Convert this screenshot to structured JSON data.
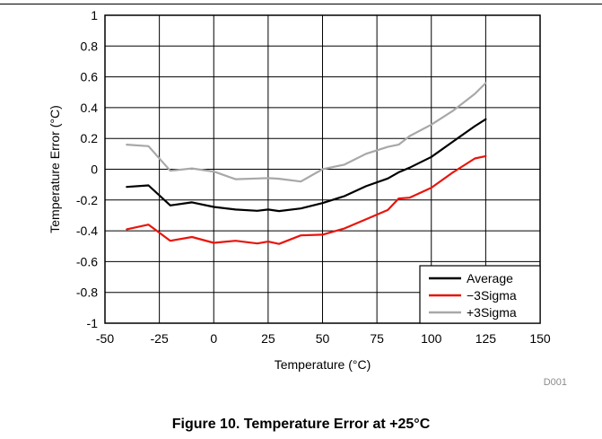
{
  "caption": "Figure 10. Temperature Error at +25°C",
  "figure_code": "D001",
  "chart_data": {
    "type": "line",
    "title": "",
    "xlabel": "Temperature (°C)",
    "ylabel": "Temperature Error (°C)",
    "xlim": [
      -50,
      150
    ],
    "ylim": [
      -1,
      1
    ],
    "x_ticks": [
      -50,
      -25,
      0,
      25,
      50,
      75,
      100,
      125,
      150
    ],
    "x_tick_labels": [
      "-50",
      "-25",
      "0",
      "25",
      "50",
      "75",
      "100",
      "125",
      "150"
    ],
    "y_ticks": [
      -1,
      -0.8,
      -0.6,
      -0.4,
      -0.2,
      0,
      0.2,
      0.4,
      0.6,
      0.8,
      1
    ],
    "y_tick_labels": [
      "-1",
      "-0.8",
      "-0.6",
      "-0.4",
      "-0.2",
      "0",
      "0.2",
      "0.4",
      "0.6",
      "0.8",
      "1"
    ],
    "grid": true,
    "legend_position": "bottom-right",
    "series": [
      {
        "name": "Average",
        "color": "#000000",
        "x": [
          -40,
          -30,
          -20,
          -10,
          0,
          10,
          20,
          25,
          30,
          40,
          50,
          60,
          70,
          80,
          85,
          90,
          100,
          110,
          120,
          125
        ],
        "y": [
          -0.115,
          -0.105,
          -0.235,
          -0.215,
          -0.245,
          -0.262,
          -0.27,
          -0.262,
          -0.272,
          -0.255,
          -0.22,
          -0.175,
          -0.11,
          -0.06,
          -0.02,
          0.01,
          0.08,
          0.18,
          0.28,
          0.325
        ]
      },
      {
        "name": "−3Sigma",
        "color": "#e8150c",
        "x": [
          -40,
          -30,
          -20,
          -10,
          0,
          10,
          20,
          25,
          30,
          40,
          50,
          60,
          70,
          80,
          85,
          90,
          100,
          110,
          120,
          125
        ],
        "y": [
          -0.39,
          -0.36,
          -0.465,
          -0.44,
          -0.478,
          -0.465,
          -0.482,
          -0.47,
          -0.485,
          -0.43,
          -0.425,
          -0.385,
          -0.325,
          -0.265,
          -0.19,
          -0.185,
          -0.12,
          -0.02,
          0.07,
          0.085
        ]
      },
      {
        "name": "+3Sigma",
        "color": "#a8a8a8",
        "x": [
          -40,
          -30,
          -20,
          -10,
          0,
          10,
          20,
          25,
          30,
          40,
          50,
          60,
          70,
          80,
          85,
          90,
          100,
          110,
          120,
          125
        ],
        "y": [
          0.16,
          0.15,
          -0.01,
          0.005,
          -0.015,
          -0.065,
          -0.06,
          -0.058,
          -0.062,
          -0.08,
          0.0,
          0.03,
          0.1,
          0.145,
          0.16,
          0.215,
          0.29,
          0.38,
          0.49,
          0.56
        ]
      }
    ]
  }
}
